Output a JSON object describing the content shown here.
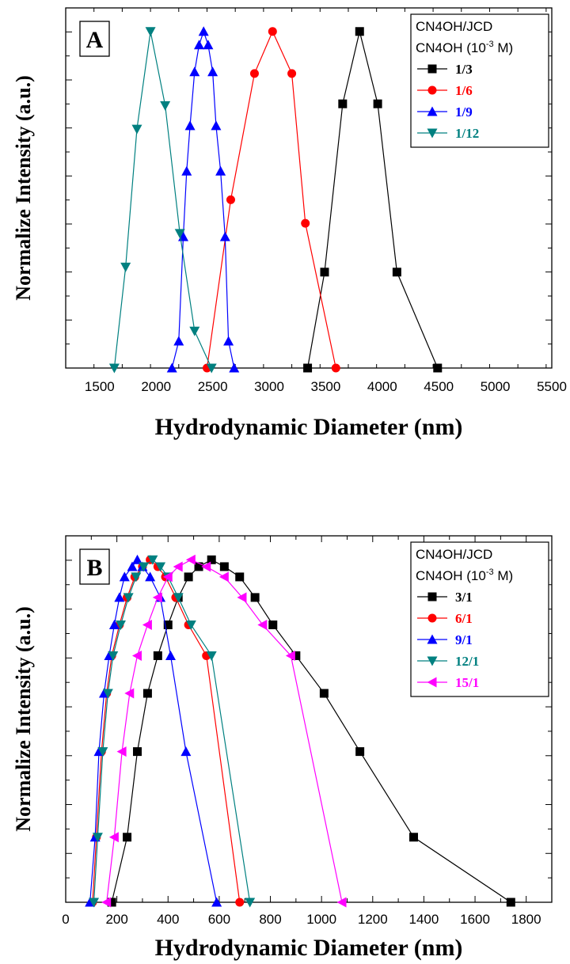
{
  "chart_data": [
    {
      "type": "line",
      "panel_label": "A",
      "xlabel": "Hydrodynamic Diameter (nm)",
      "ylabel": "Normalize Intensity (a.u.)",
      "xlim": [
        1200,
        5500
      ],
      "ylim": [
        0,
        1.07
      ],
      "x_ticks": [
        1500,
        2000,
        2500,
        3000,
        3500,
        4000,
        4500,
        5000,
        5500
      ],
      "y_ticks_labeled": false,
      "legend": {
        "title_line1": "CN4OH/JCD",
        "title_line2_prefix": "CN4OH (10",
        "title_line2_exp": "-3",
        "title_line2_suffix": " M)",
        "position": "top-right"
      },
      "series": [
        {
          "name": "1/3",
          "color": "#000000",
          "marker": "square",
          "x": [
            3340,
            3490,
            3650,
            3800,
            3960,
            4130,
            4490
          ],
          "y": [
            0.0,
            0.285,
            0.785,
            1.0,
            0.785,
            0.285,
            0.0
          ]
        },
        {
          "name": "1/6",
          "color": "#ff0000",
          "marker": "circle",
          "x": [
            2450,
            2660,
            2870,
            3030,
            3200,
            3320,
            3590
          ],
          "y": [
            0.0,
            0.5,
            0.875,
            1.0,
            0.875,
            0.43,
            0.0
          ]
        },
        {
          "name": "1/9",
          "color": "#0000ff",
          "marker": "triangle-up",
          "x": [
            2140,
            2200,
            2240,
            2270,
            2300,
            2340,
            2380,
            2420,
            2460,
            2500,
            2530,
            2570,
            2610,
            2640,
            2690
          ],
          "y": [
            0.0,
            0.08,
            0.39,
            0.585,
            0.72,
            0.88,
            0.96,
            1.0,
            0.96,
            0.88,
            0.72,
            0.585,
            0.39,
            0.08,
            0.0
          ]
        },
        {
          "name": "1/12",
          "color": "#008080",
          "marker": "triangle-down",
          "x": [
            1630,
            1730,
            1830,
            1950,
            2080,
            2210,
            2340,
            2490
          ],
          "y": [
            0.0,
            0.3,
            0.71,
            1.0,
            0.78,
            0.4,
            0.11,
            0.0
          ]
        }
      ]
    },
    {
      "type": "line",
      "panel_label": "B",
      "xlabel": "Hydrodynamic Diameter (nm)",
      "ylabel": "Normalize Intensity (a.u.)",
      "xlim": [
        0,
        1900
      ],
      "ylim": [
        0,
        1.07
      ],
      "x_ticks": [
        0,
        200,
        400,
        600,
        800,
        1000,
        1200,
        1400,
        1600,
        1800
      ],
      "y_ticks_labeled": false,
      "legend": {
        "title_line1": "CN4OH/JCD",
        "title_line2_prefix": "CN4OH (10",
        "title_line2_exp": "-3",
        "title_line2_suffix": " M)",
        "position": "top-right"
      },
      "series": [
        {
          "name": "3/1",
          "color": "#000000",
          "marker": "square",
          "x": [
            180,
            240,
            280,
            320,
            360,
            400,
            440,
            480,
            520,
            570,
            620,
            680,
            740,
            810,
            900,
            1010,
            1150,
            1360,
            1740
          ],
          "y": [
            0.0,
            0.19,
            0.44,
            0.61,
            0.72,
            0.81,
            0.89,
            0.95,
            0.98,
            1.0,
            0.98,
            0.95,
            0.89,
            0.81,
            0.72,
            0.61,
            0.44,
            0.19,
            0.0
          ]
        },
        {
          "name": "6/1",
          "color": "#ff0000",
          "marker": "circle",
          "x": [
            105,
            120,
            140,
            160,
            180,
            210,
            240,
            270,
            300,
            330,
            360,
            390,
            430,
            480,
            550,
            680
          ],
          "y": [
            0.0,
            0.19,
            0.44,
            0.61,
            0.72,
            0.81,
            0.89,
            0.95,
            0.98,
            1.0,
            0.98,
            0.95,
            0.89,
            0.81,
            0.72,
            0.0
          ]
        },
        {
          "name": "9/1",
          "color": "#0000ff",
          "marker": "triangle-up",
          "x": [
            95,
            115,
            130,
            150,
            170,
            190,
            210,
            230,
            260,
            280,
            300,
            330,
            370,
            410,
            470,
            590
          ],
          "y": [
            0.0,
            0.19,
            0.44,
            0.61,
            0.72,
            0.81,
            0.89,
            0.95,
            0.98,
            1.0,
            0.98,
            0.95,
            0.89,
            0.72,
            0.44,
            0.0
          ]
        },
        {
          "name": "12/1",
          "color": "#008080",
          "marker": "triangle-down",
          "x": [
            110,
            125,
            145,
            165,
            185,
            215,
            245,
            275,
            305,
            340,
            370,
            400,
            440,
            490,
            570,
            720
          ],
          "y": [
            0.0,
            0.19,
            0.44,
            0.61,
            0.72,
            0.81,
            0.89,
            0.95,
            0.98,
            1.0,
            0.98,
            0.95,
            0.89,
            0.81,
            0.72,
            0.0
          ]
        },
        {
          "name": "15/1",
          "color": "#ff00ff",
          "marker": "triangle-left",
          "x": [
            160,
            190,
            220,
            250,
            280,
            320,
            360,
            400,
            440,
            490,
            550,
            620,
            690,
            770,
            880,
            1080
          ],
          "y": [
            0.0,
            0.19,
            0.44,
            0.61,
            0.72,
            0.81,
            0.89,
            0.95,
            0.98,
            1.0,
            0.98,
            0.95,
            0.89,
            0.81,
            0.72,
            0.0
          ]
        }
      ]
    }
  ]
}
